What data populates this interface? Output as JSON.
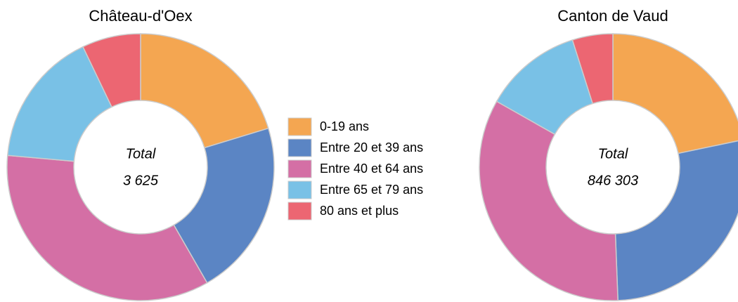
{
  "chart_data": [
    {
      "type": "pie",
      "title": "Château-d'Oex",
      "categories": [
        "0-19 ans",
        "Entre 20 et 39 ans",
        "Entre 40 et 64 ans",
        "Entre 65 et 79 ans",
        "80 ans et plus"
      ],
      "values": [
        20.3,
        21.4,
        34.7,
        16.5,
        7.1
      ],
      "colors": [
        "#f4a651",
        "#5b85c4",
        "#d46fa5",
        "#79c1e6",
        "#ec6672"
      ],
      "center_label": "Total",
      "center_value": "3 625"
    },
    {
      "type": "pie",
      "title": "Canton de Vaud",
      "categories": [
        "0-19 ans",
        "Entre 20 et 39 ans",
        "Entre 40 et 64 ans",
        "Entre 65 et 79 ans",
        "80 ans et plus"
      ],
      "values": [
        21.7,
        27.7,
        33.8,
        11.9,
        4.9
      ],
      "colors": [
        "#f4a651",
        "#5b85c4",
        "#d46fa5",
        "#79c1e6",
        "#ec6672"
      ],
      "center_label": "Total",
      "center_value": "846 303"
    }
  ]
}
